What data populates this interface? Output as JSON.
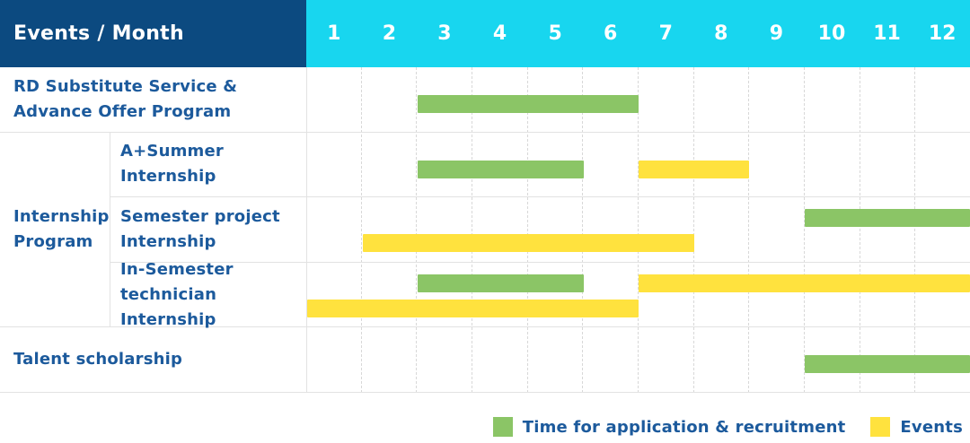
{
  "header": {
    "corner_label": "Events / Month",
    "months": [
      "1",
      "2",
      "3",
      "4",
      "5",
      "6",
      "7",
      "8",
      "9",
      "10",
      "11",
      "12"
    ]
  },
  "colors": {
    "navy_header": "#0c4a80",
    "cyan_header": "#18d6ef",
    "green": "#8bc566",
    "yellow": "#ffe23e",
    "label_blue": "#1c5a9c",
    "grid_line": "#e2e2e2",
    "series": {
      "Time for application & recruitment": "#8bc566",
      "Events": "#ffe23e"
    }
  },
  "group": {
    "label": "Internship Program",
    "label_lines": [
      "Internship",
      "Program"
    ]
  },
  "legend": [
    {
      "label": "Time for application & recruitment",
      "color": "#8bc566"
    },
    {
      "label": "Events",
      "color": "#ffe23e"
    }
  ],
  "chart_data": {
    "type": "bar",
    "variant": "gantt",
    "title": "Events / Month",
    "x_axis": {
      "unit": "month",
      "ticks": [
        "1",
        "2",
        "3",
        "4",
        "5",
        "6",
        "7",
        "8",
        "9",
        "10",
        "11",
        "12"
      ],
      "range": [
        1,
        12
      ]
    },
    "legend_entries": [
      "Time for application & recruitment",
      "Events"
    ],
    "rows": [
      {
        "label": "RD Substitute Service & Advance Offer Program",
        "label_lines": [
          "RD Substitute Service &",
          "Advance Offer Program"
        ],
        "group": null,
        "lines": 1,
        "bars": [
          {
            "series": "Time for application & recruitment",
            "start_month": 3,
            "end_month": 6,
            "line": 0
          }
        ]
      },
      {
        "label": "A+Summer Internship",
        "label_lines": [
          "A+Summer",
          "Internship"
        ],
        "group": "Internship Program",
        "lines": 1,
        "bars": [
          {
            "series": "Time for application & recruitment",
            "start_month": 3,
            "end_month": 5,
            "line": 0
          },
          {
            "series": "Events",
            "start_month": 7,
            "end_month": 8,
            "line": 0
          }
        ]
      },
      {
        "label": "Semester project Internship",
        "label_lines": [
          "Semester project",
          "Internship"
        ],
        "group": "Internship Program",
        "lines": 2,
        "bars": [
          {
            "series": "Time for application & recruitment",
            "start_month": 10,
            "end_month": 12,
            "line": 0
          },
          {
            "series": "Events",
            "start_month": 2,
            "end_month": 7,
            "line": 1
          }
        ]
      },
      {
        "label": "In-Semester technician Internship",
        "label_lines": [
          "In-Semester",
          "technician Internship"
        ],
        "group": "Internship Program",
        "lines": 2,
        "bars": [
          {
            "series": "Time for application & recruitment",
            "start_month": 3,
            "end_month": 5,
            "line": 0
          },
          {
            "series": "Events",
            "start_month": 7,
            "end_month": 12,
            "line": 0
          },
          {
            "series": "Events",
            "start_month": 1,
            "end_month": 6,
            "line": 1
          }
        ]
      },
      {
        "label": "Talent scholarship",
        "label_lines": [
          "Talent scholarship"
        ],
        "group": null,
        "lines": 1,
        "bars": [
          {
            "series": "Time for application & recruitment",
            "start_month": 10,
            "end_month": 12,
            "line": 0
          }
        ]
      }
    ]
  }
}
